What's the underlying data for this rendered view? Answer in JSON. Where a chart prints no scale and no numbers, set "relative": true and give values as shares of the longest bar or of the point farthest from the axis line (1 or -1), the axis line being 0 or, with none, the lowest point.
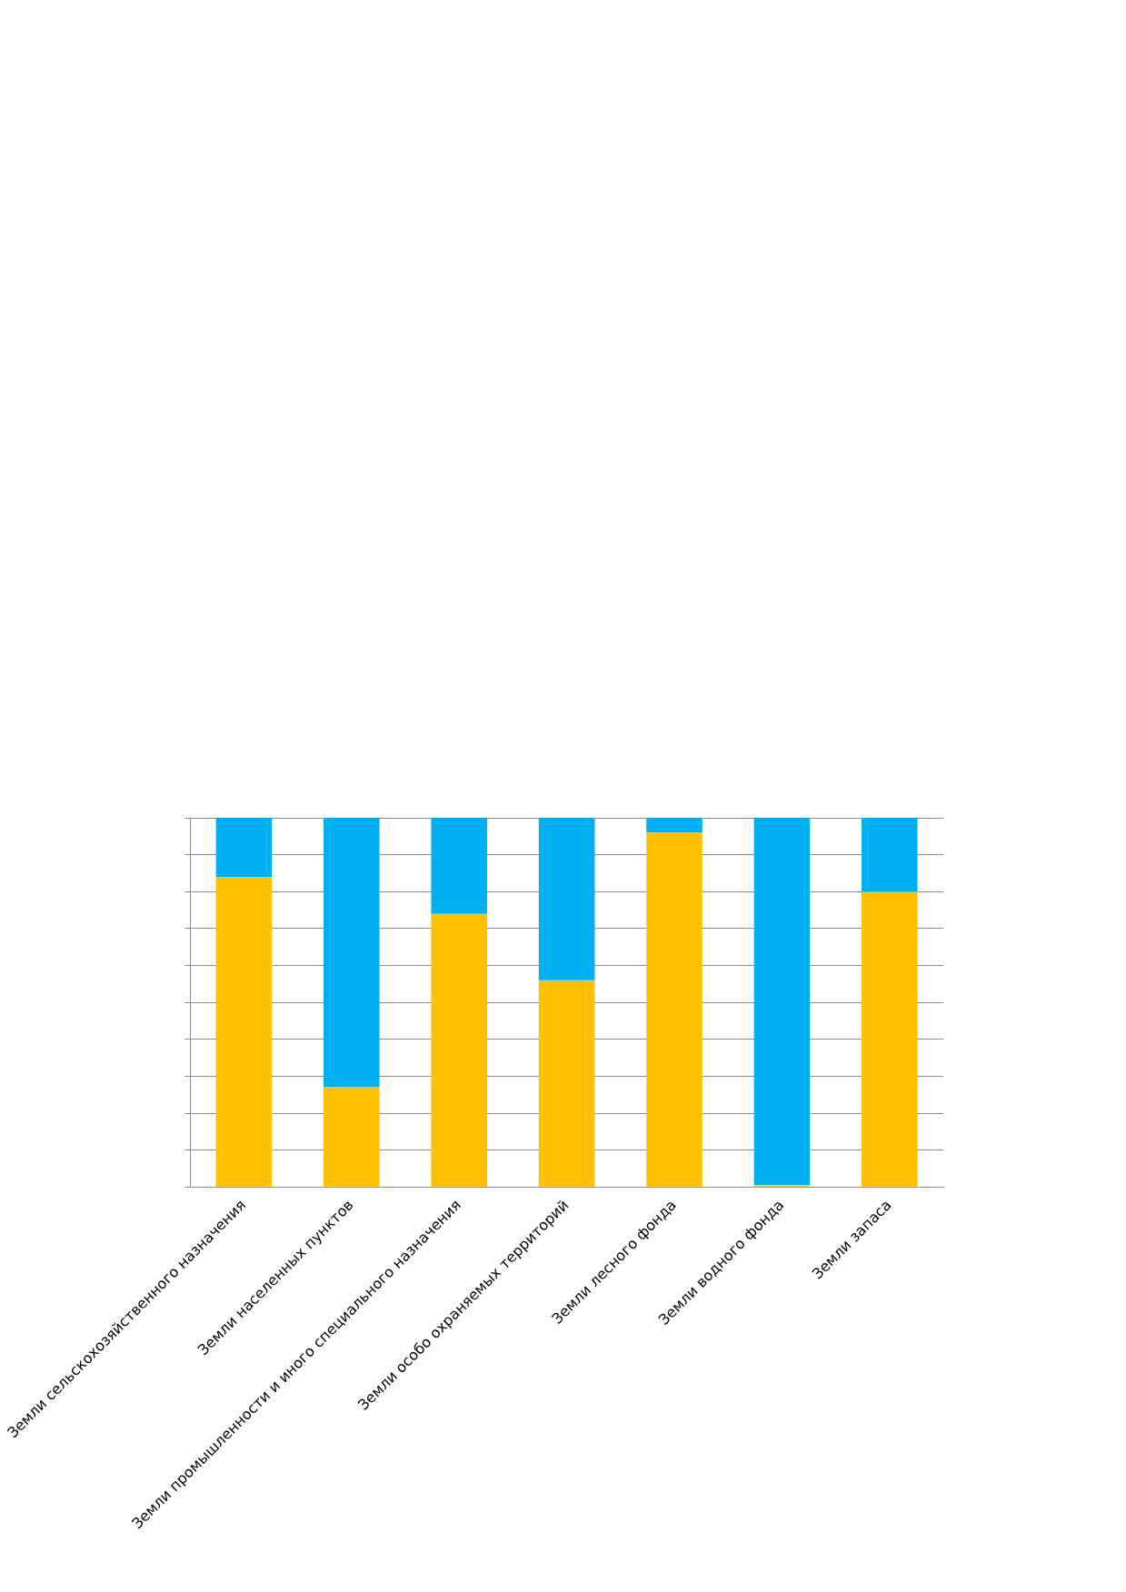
{
  "chart_data": {
    "type": "bar",
    "stacked": true,
    "relative": true,
    "grid": "y",
    "legend": false,
    "categories": [
      "Земли сельскохозяйственного назначения",
      "Земли населенных пунктов",
      "Земли промышленности и иного специального назначения",
      "Земли особо охраняемых территорий",
      "Земли лесного фонда",
      "Земли водного фонда",
      "Земли запаса"
    ],
    "series": [
      {
        "color": "#ffc000",
        "values": [
          0.84,
          0.27,
          0.74,
          0.56,
          0.96,
          0.005,
          0.8
        ]
      },
      {
        "color": "#00b0f0",
        "values": [
          0.16,
          0.73,
          0.26,
          0.44,
          0.04,
          0.995,
          0.2
        ]
      }
    ]
  }
}
